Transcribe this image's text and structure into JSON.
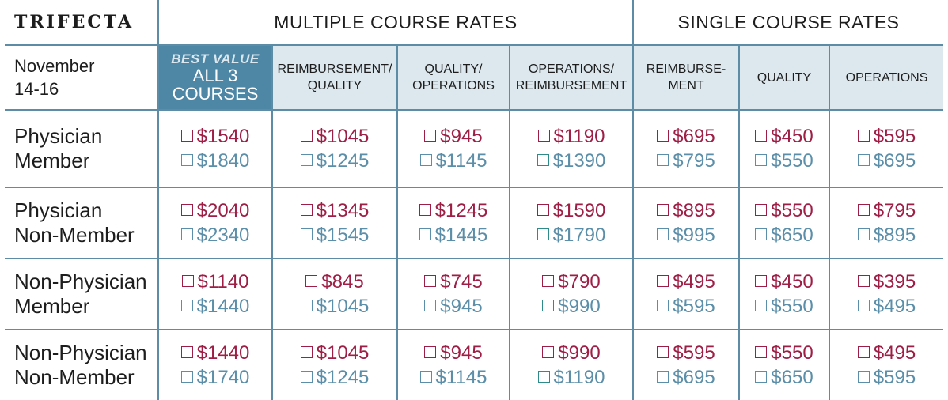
{
  "title": "TRIFECTA",
  "groups": {
    "multiple": "MULTIPLE COURSE RATES",
    "single": "SINGLE COURSE RATES"
  },
  "date": {
    "line1": "November",
    "line2": "14-16"
  },
  "best_value": {
    "tag": "BEST VALUE",
    "line1": "ALL 3",
    "line2": "COURSES"
  },
  "columns": [
    {
      "line1": "REIMBURSEMENT/",
      "line2": "QUALITY"
    },
    {
      "line1": "QUALITY/",
      "line2": "OPERATIONS"
    },
    {
      "line1": "OPERATIONS/",
      "line2": "REIMBURSEMENT"
    },
    {
      "line1": "REIMBURSE-",
      "line2": "MENT"
    },
    {
      "line1": "QUALITY",
      "line2": ""
    },
    {
      "line1": "OPERATIONS",
      "line2": ""
    }
  ],
  "colors": {
    "red": "#9e1e46",
    "blue": "#5b8ea8",
    "header_bg": "#dce8ee",
    "best_bg": "#4e87a6",
    "border": "#5d8ca7"
  },
  "rows": [
    {
      "label1": "Physician",
      "label2": "Member",
      "prices": [
        [
          "$1540",
          "$1840"
        ],
        [
          "$1045",
          "$1245"
        ],
        [
          "$945",
          "$1145"
        ],
        [
          "$1190",
          "$1390"
        ],
        [
          "$695",
          "$795"
        ],
        [
          "$450",
          "$550"
        ],
        [
          "$595",
          "$695"
        ]
      ]
    },
    {
      "label1": "Physician",
      "label2": "Non-Member",
      "prices": [
        [
          "$2040",
          "$2340"
        ],
        [
          "$1345",
          "$1545"
        ],
        [
          "$1245",
          "$1445"
        ],
        [
          "$1590",
          "$1790"
        ],
        [
          "$895",
          "$995"
        ],
        [
          "$550",
          "$650"
        ],
        [
          "$795",
          "$895"
        ]
      ]
    },
    {
      "label1": "Non-Physician",
      "label2": "Member",
      "prices": [
        [
          "$1140",
          "$1440"
        ],
        [
          "$845",
          "$1045"
        ],
        [
          "$745",
          "$945"
        ],
        [
          "$790",
          "$990"
        ],
        [
          "$495",
          "$595"
        ],
        [
          "$450",
          "$550"
        ],
        [
          "$395",
          "$495"
        ]
      ]
    },
    {
      "label1": "Non-Physician",
      "label2": "Non-Member",
      "prices": [
        [
          "$1440",
          "$1740"
        ],
        [
          "$1045",
          "$1245"
        ],
        [
          "$945",
          "$1145"
        ],
        [
          "$990",
          "$1190"
        ],
        [
          "$595",
          "$695"
        ],
        [
          "$550",
          "$650"
        ],
        [
          "$495",
          "$595"
        ]
      ]
    }
  ]
}
